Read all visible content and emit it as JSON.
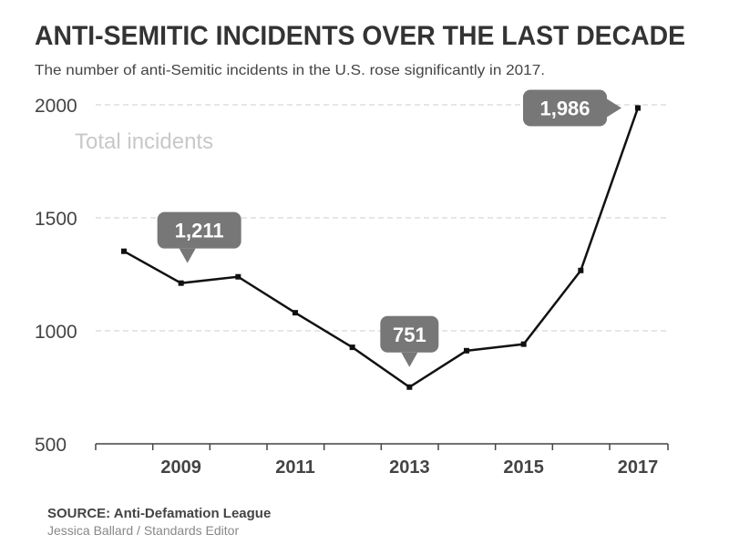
{
  "chart_data": {
    "type": "line",
    "title": "ANTI-SEMITIC INCIDENTS OVER THE LAST DECADE",
    "subtitle": "The number of anti-Semitic incidents in the U.S. rose significantly in 2017.",
    "ylabel": "Total incidents",
    "xlabel": "",
    "x": [
      2008,
      2009,
      2010,
      2011,
      2012,
      2013,
      2014,
      2015,
      2016,
      2017
    ],
    "series": [
      {
        "name": "Total incidents",
        "values": [
          1352,
          1211,
          1239,
          1080,
          927,
          751,
          912,
          941,
          1267,
          1986
        ]
      }
    ],
    "ylim": [
      500,
      2000
    ],
    "yticks": [
      "2000",
      "1500",
      "1000",
      "500"
    ],
    "ytick_values": [
      2000,
      1500,
      1000,
      500
    ],
    "xticks": [
      "2009",
      "2011",
      "2013",
      "2015",
      "2017"
    ],
    "xtick_values": [
      2009,
      2011,
      2013,
      2015,
      2017
    ],
    "grid": true,
    "annotations": [
      {
        "text": "1,211",
        "year": 2009,
        "value": 1211,
        "pointer": "down"
      },
      {
        "text": "751",
        "year": 2013,
        "value": 751,
        "pointer": "down"
      },
      {
        "text": "1,986",
        "year": 2017,
        "value": 1986,
        "pointer": "right"
      }
    ],
    "line_color": "#111111",
    "callout_color": "#777777"
  },
  "footer": {
    "source": "SOURCE: Anti-Defamation League",
    "credit": "Jessica Ballard / Standards Editor"
  }
}
